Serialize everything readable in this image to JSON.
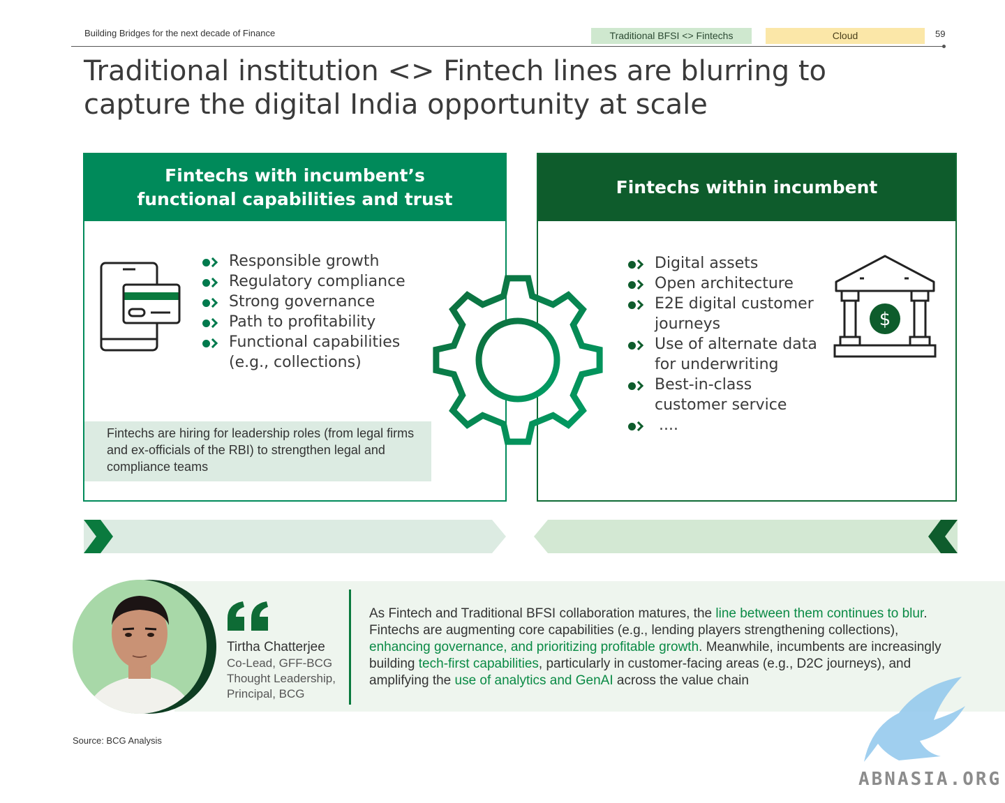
{
  "header": {
    "doc_title": "Building Bridges for the next decade of Finance",
    "tag_active": "Traditional BFSI <> Fintechs",
    "tag_other": "Cloud",
    "page_number": "59"
  },
  "title": "Traditional institution <> Fintech lines are blurring to capture the digital India opportunity at scale",
  "left_panel": {
    "heading": "Fintechs with incumbent’s\nfunctional capabilities and trust",
    "items": [
      "Responsible growth",
      "Regulatory compliance",
      "Strong governance",
      "Path to profitability",
      "Functional capabilities (e.g., collections)"
    ],
    "note": "Fintechs are hiring for leadership roles (from legal firms and ex-officials of the RBI) to strengthen legal and compliance teams",
    "icon": "mobile-card-icon"
  },
  "right_panel": {
    "heading": "Fintechs within incumbent",
    "items": [
      "Digital assets",
      "Open architecture",
      "E2E digital customer journeys",
      "Use of alternate data for underwriting",
      "Best-in-class customer service",
      "...."
    ],
    "icon": "bank-dollar-icon",
    "icon_symbol": "$"
  },
  "center_icon": "gear-icon",
  "quote": {
    "person_name": "Tirtha Chatterjee",
    "person_role": "Co-Lead, GFF-BCG\nThought Leadership,\nPrincipal, BCG",
    "text_parts": [
      {
        "t": "As Fintech and Traditional BFSI collaboration matures, the ",
        "hl": false
      },
      {
        "t": "line between them continues to blur",
        "hl": true
      },
      {
        "t": ". Fintechs are augmenting core capabilities (e.g., lending players strengthening collections), ",
        "hl": false
      },
      {
        "t": "enhancing governance, and prioritizing profitable growth",
        "hl": true
      },
      {
        "t": ". Meanwhile, incumbents are increasingly building ",
        "hl": false
      },
      {
        "t": "tech-first capabilities",
        "hl": true
      },
      {
        "t": ", particularly in customer-facing areas (e.g., D2C journeys), and amplifying the ",
        "hl": false
      },
      {
        "t": "use of analytics and GenAI",
        "hl": true
      },
      {
        "t": " across the value chain",
        "hl": false
      }
    ]
  },
  "source": "Source: BCG Analysis",
  "watermark": "ABNASIA.ORG",
  "colors": {
    "primary_green": "#008a5a",
    "dark_green": "#0e5c2c",
    "tag_green": "#cfe8cf",
    "tag_yellow": "#fbe7a8",
    "highlight": "#0a8a45"
  }
}
